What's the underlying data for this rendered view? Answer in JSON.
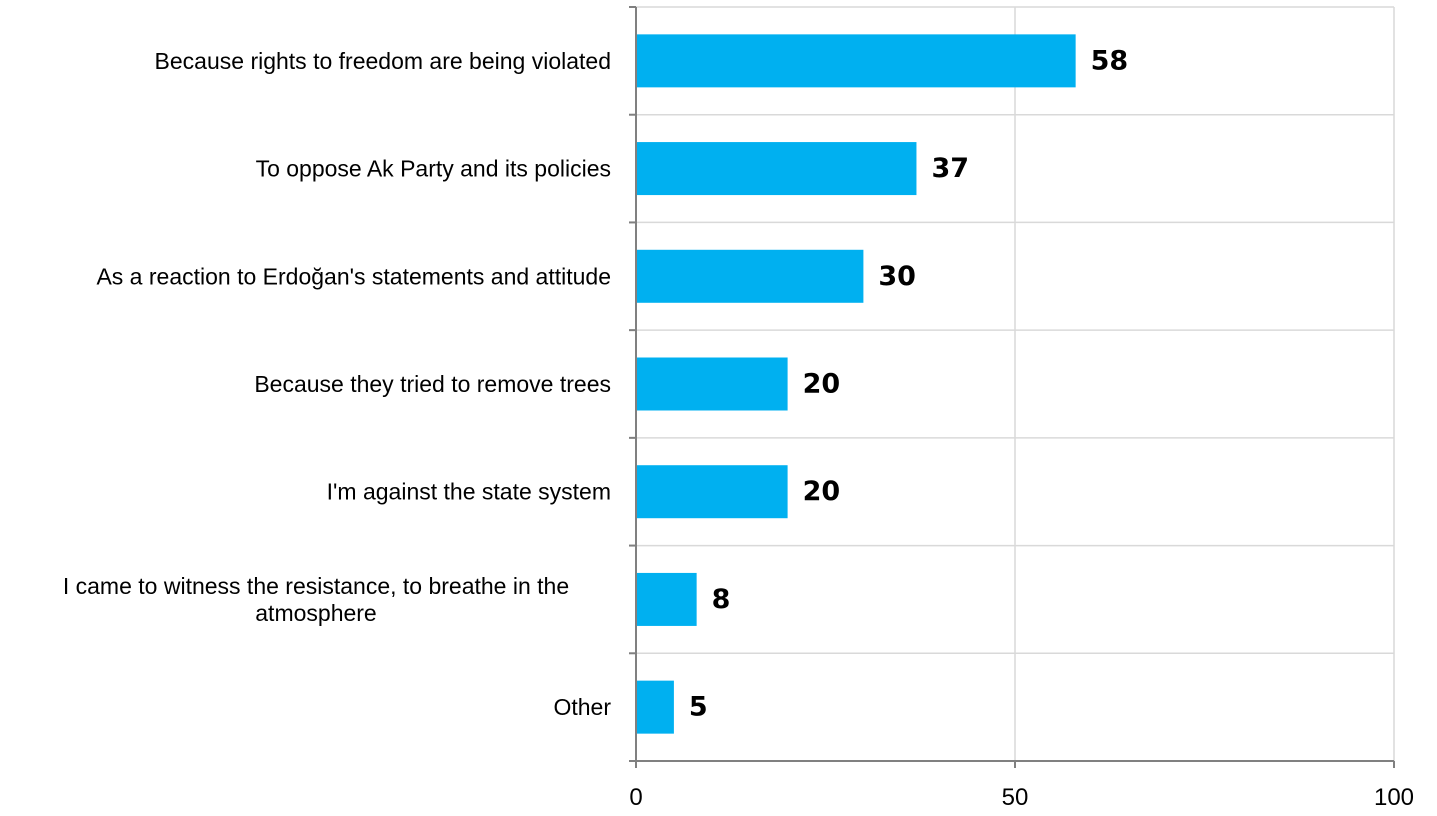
{
  "chart_data": {
    "type": "bar",
    "orientation": "horizontal",
    "categories": [
      [
        "Because rights to freedom are being violated"
      ],
      [
        "To oppose Ak Party and its policies"
      ],
      [
        "As a reaction to Erdoğan's statements and attitude"
      ],
      [
        "Because they tried to remove trees"
      ],
      [
        "I'm against the state system"
      ],
      [
        "I came to witness the resistance, to breathe in the",
        "atmosphere"
      ],
      [
        "Other"
      ]
    ],
    "values": [
      58,
      37,
      30,
      20,
      20,
      8,
      5
    ],
    "data_labels": [
      "58",
      "37",
      "30",
      "20",
      "20",
      "8",
      "5"
    ],
    "xlim": [
      0,
      100
    ],
    "x_ticks": [
      0,
      50,
      100
    ],
    "x_tick_labels": [
      "0",
      "50",
      "100"
    ],
    "grid": true,
    "bar_color": "#00b0f0",
    "grid_color": "#d9d9d9",
    "axis_color": "#808080"
  }
}
